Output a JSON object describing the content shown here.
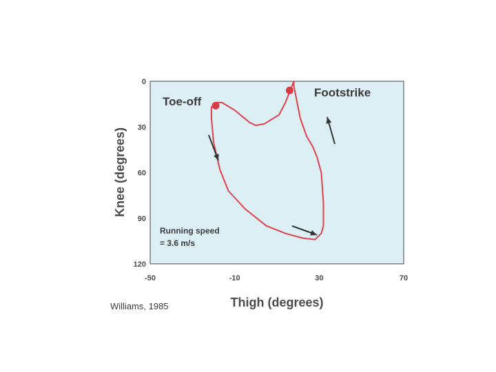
{
  "chart_data": {
    "type": "line",
    "xlabel": "Thigh (degrees)",
    "ylabel": "Knee  (degrees)",
    "xlim": [
      -50,
      70
    ],
    "ylim": [
      0,
      120
    ],
    "y_inverted": true,
    "x_ticks": [
      -50,
      -10,
      30,
      70
    ],
    "x_tick_labels": [
      "-50",
      "-10",
      "30",
      "70"
    ],
    "y_ticks": [
      0,
      30,
      60,
      90,
      120
    ],
    "y_tick_labels": [
      "0",
      "30",
      "60",
      "90",
      "120"
    ],
    "grid": false,
    "series": [
      {
        "x": [
          18,
          14,
          11,
          4,
          0,
          -3,
          -10,
          -16,
          -19,
          -21,
          -21,
          -20,
          -17,
          -13,
          -5,
          5,
          14,
          22,
          28,
          31,
          32,
          32,
          31,
          29,
          27,
          24,
          21,
          18
        ],
        "y": [
          0,
          14,
          22,
          28,
          29,
          27,
          19,
          14,
          14,
          17,
          24,
          40,
          58,
          72,
          84,
          95,
          100,
          103,
          104,
          100,
          95,
          80,
          60,
          50,
          43,
          36,
          24,
          3
        ],
        "color": "#e0404a",
        "closed": true
      }
    ],
    "markers": [
      {
        "label": "Toe-off",
        "x": -19,
        "y": 16
      },
      {
        "label": "Footstrike",
        "x": 16,
        "y": 6
      }
    ],
    "annotations": {
      "note_line1": "Running speed",
      "note_line2": "= 3.6 m/s",
      "source": "Williams, 1985"
    },
    "colors": {
      "plot_background": "#dbeff5",
      "line": "#e0404a",
      "marker": "#d93a44",
      "arrow": "#333333",
      "frame": "#444444"
    }
  }
}
